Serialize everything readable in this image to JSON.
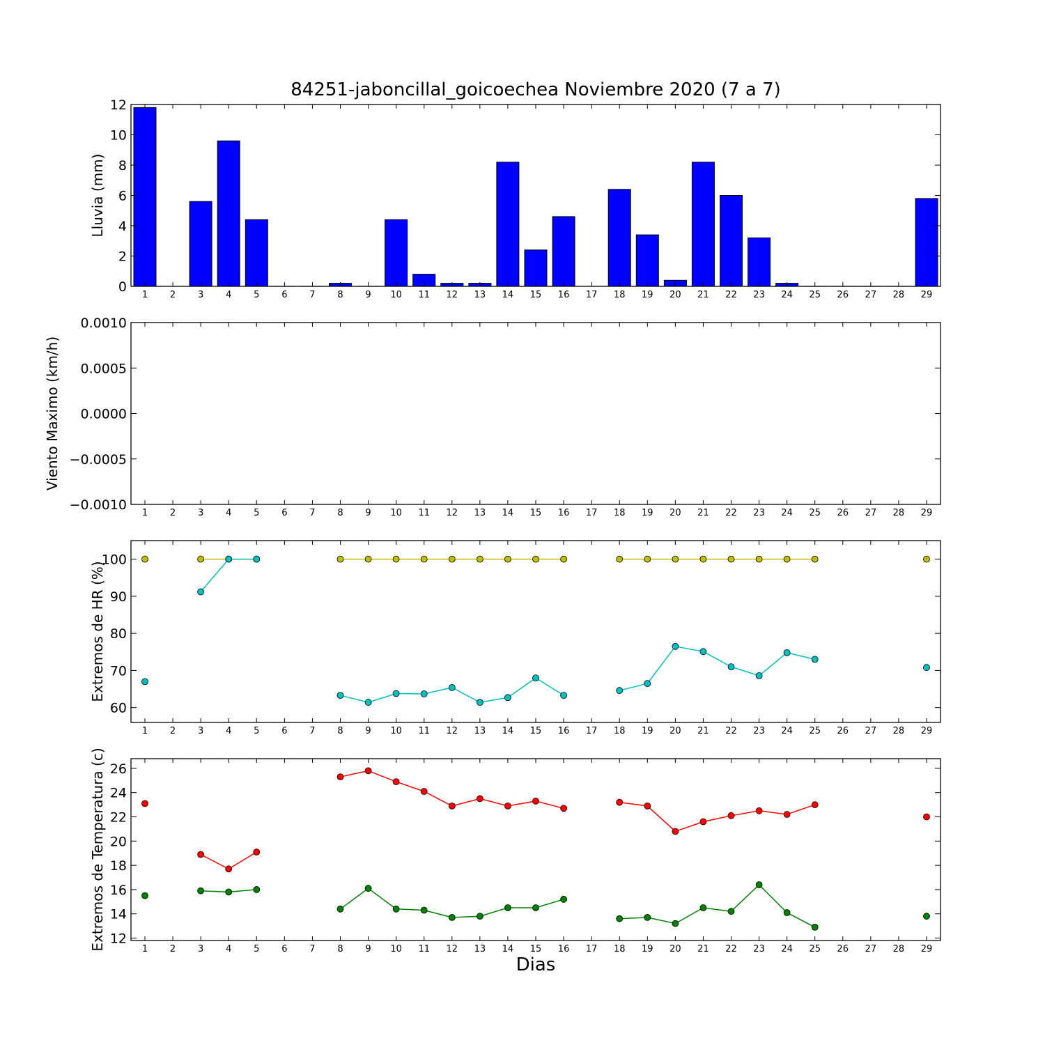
{
  "title": "84251-jaboncillal_goicoechea Noviembre 2020  (7 a 7)",
  "xlabel": "Dias",
  "colors": {
    "rain": "#0000ff",
    "hr_max": "#bfbf00",
    "hr_min": "#00bfbf",
    "t_max": "#ff0000",
    "t_min": "#008000"
  },
  "chart_data": [
    {
      "type": "bar",
      "ylabel": "Lluvia (mm)",
      "ylim": [
        0,
        12
      ],
      "yticks": [
        "0",
        "2",
        "4",
        "6",
        "8",
        "10",
        "12"
      ],
      "yticks_values": [
        0,
        2,
        4,
        6,
        8,
        10,
        12
      ],
      "xticks": [
        "1",
        "2",
        "3",
        "4",
        "5",
        "6",
        "7",
        "8",
        "9",
        "10",
        "11",
        "12",
        "13",
        "14",
        "15",
        "16",
        "17",
        "18",
        "19",
        "20",
        "21",
        "22",
        "23",
        "24",
        "25",
        "26",
        "27",
        "28",
        "29"
      ],
      "series": [
        {
          "values": [
            11.8,
            null,
            5.6,
            9.6,
            4.4,
            0,
            0,
            0.2,
            0,
            4.4,
            0.8,
            0.2,
            0.2,
            8.2,
            2.4,
            4.6,
            null,
            6.4,
            3.4,
            0.4,
            8.2,
            6.0,
            3.2,
            0.2,
            0,
            0,
            0,
            0,
            5.8
          ]
        }
      ]
    },
    {
      "type": "line",
      "ylabel": "Viento Maximo (km/h)",
      "ylim": [
        -0.001,
        0.001
      ],
      "yticks": [
        "−0.0010",
        "−0.0005",
        "0.0000",
        "0.0005",
        "0.0010"
      ],
      "yticks_values": [
        -0.001,
        -0.0005,
        0,
        0.0005,
        0.001
      ],
      "xticks": [
        "1",
        "2",
        "3",
        "4",
        "5",
        "6",
        "7",
        "8",
        "9",
        "10",
        "11",
        "12",
        "13",
        "14",
        "15",
        "16",
        "17",
        "18",
        "19",
        "20",
        "21",
        "22",
        "23",
        "24",
        "25",
        "26",
        "27",
        "28",
        "29"
      ],
      "series": []
    },
    {
      "type": "line",
      "ylabel": "Extremos de HR (%)",
      "ylim": [
        56,
        105
      ],
      "yticks": [
        "60",
        "70",
        "80",
        "90",
        "100"
      ],
      "yticks_values": [
        60,
        70,
        80,
        90,
        100
      ],
      "xticks": [
        "1",
        "2",
        "3",
        "4",
        "5",
        "6",
        "7",
        "8",
        "9",
        "10",
        "11",
        "12",
        "13",
        "14",
        "15",
        "16",
        "17",
        "18",
        "19",
        "20",
        "21",
        "22",
        "23",
        "24",
        "25",
        "26",
        "27",
        "28",
        "29"
      ],
      "series": [
        {
          "values": [
            100,
            null,
            100,
            100,
            100,
            null,
            null,
            100,
            100,
            100,
            100,
            100,
            100,
            100,
            100,
            100,
            null,
            100,
            100,
            100,
            100,
            100,
            100,
            100,
            100,
            null,
            null,
            null,
            100
          ]
        },
        {
          "values": [
            67,
            null,
            91.2,
            100,
            100,
            null,
            null,
            63.3,
            61.4,
            63.8,
            63.7,
            65.4,
            61.4,
            62.7,
            68,
            63.3,
            null,
            64.6,
            66.5,
            76.5,
            75.1,
            71,
            68.6,
            74.8,
            73,
            null,
            null,
            null,
            70.8
          ]
        }
      ]
    },
    {
      "type": "line",
      "ylabel": "Extremos de Temperatura (c)",
      "ylim": [
        11.8,
        26.8
      ],
      "yticks": [
        "12",
        "14",
        "16",
        "18",
        "20",
        "22",
        "24",
        "26"
      ],
      "yticks_values": [
        12,
        14,
        16,
        18,
        20,
        22,
        24,
        26
      ],
      "xticks": [
        "1",
        "2",
        "3",
        "4",
        "5",
        "6",
        "7",
        "8",
        "9",
        "10",
        "11",
        "12",
        "13",
        "14",
        "15",
        "16",
        "17",
        "18",
        "19",
        "20",
        "21",
        "22",
        "23",
        "24",
        "25",
        "26",
        "27",
        "28",
        "29"
      ],
      "series": [
        {
          "values": [
            23.1,
            null,
            18.9,
            17.7,
            19.1,
            null,
            null,
            25.3,
            25.8,
            24.9,
            24.1,
            22.9,
            23.5,
            22.9,
            23.3,
            22.7,
            null,
            23.2,
            22.9,
            20.8,
            21.6,
            22.1,
            22.5,
            22.2,
            23.0,
            null,
            null,
            null,
            22.0
          ]
        },
        {
          "values": [
            15.5,
            null,
            15.9,
            15.8,
            16.0,
            null,
            null,
            14.4,
            16.1,
            14.4,
            14.3,
            13.7,
            13.8,
            14.5,
            14.5,
            15.2,
            null,
            13.6,
            13.7,
            13.2,
            14.5,
            14.2,
            16.4,
            14.1,
            12.9,
            null,
            null,
            null,
            13.8
          ]
        }
      ]
    }
  ]
}
